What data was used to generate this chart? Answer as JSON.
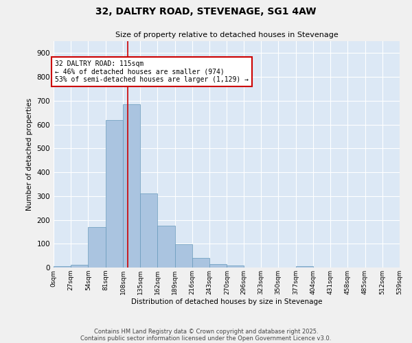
{
  "title": "32, DALTRY ROAD, STEVENAGE, SG1 4AW",
  "subtitle": "Size of property relative to detached houses in Stevenage",
  "xlabel": "Distribution of detached houses by size in Stevenage",
  "ylabel": "Number of detached properties",
  "bar_edges": [
    0,
    27,
    54,
    81,
    108,
    135,
    162,
    189,
    216,
    243,
    270,
    296,
    323,
    350,
    377,
    404,
    431,
    458,
    485,
    512,
    539
  ],
  "bar_heights": [
    7,
    12,
    170,
    620,
    685,
    310,
    175,
    98,
    40,
    15,
    10,
    0,
    0,
    0,
    7,
    0,
    0,
    0,
    0,
    0
  ],
  "bar_color": "#aac4e0",
  "bar_edge_color": "#6699bb",
  "property_size": 115,
  "vline_color": "#cc0000",
  "annotation_text": "32 DALTRY ROAD: 115sqm\n← 46% of detached houses are smaller (974)\n53% of semi-detached houses are larger (1,129) →",
  "annotation_box_color": "#ffffff",
  "annotation_box_edge_color": "#cc0000",
  "ylim": [
    0,
    950
  ],
  "yticks": [
    0,
    100,
    200,
    300,
    400,
    500,
    600,
    700,
    800,
    900
  ],
  "bg_color": "#dce8f5",
  "fig_color": "#f0f0f0",
  "grid_color": "#ffffff",
  "footer_line1": "Contains HM Land Registry data © Crown copyright and database right 2025.",
  "footer_line2": "Contains public sector information licensed under the Open Government Licence v3.0.",
  "tick_labels": [
    "0sqm",
    "27sqm",
    "54sqm",
    "81sqm",
    "108sqm",
    "135sqm",
    "162sqm",
    "189sqm",
    "216sqm",
    "243sqm",
    "270sqm",
    "296sqm",
    "323sqm",
    "350sqm",
    "377sqm",
    "404sqm",
    "431sqm",
    "458sqm",
    "485sqm",
    "512sqm",
    "539sqm"
  ]
}
